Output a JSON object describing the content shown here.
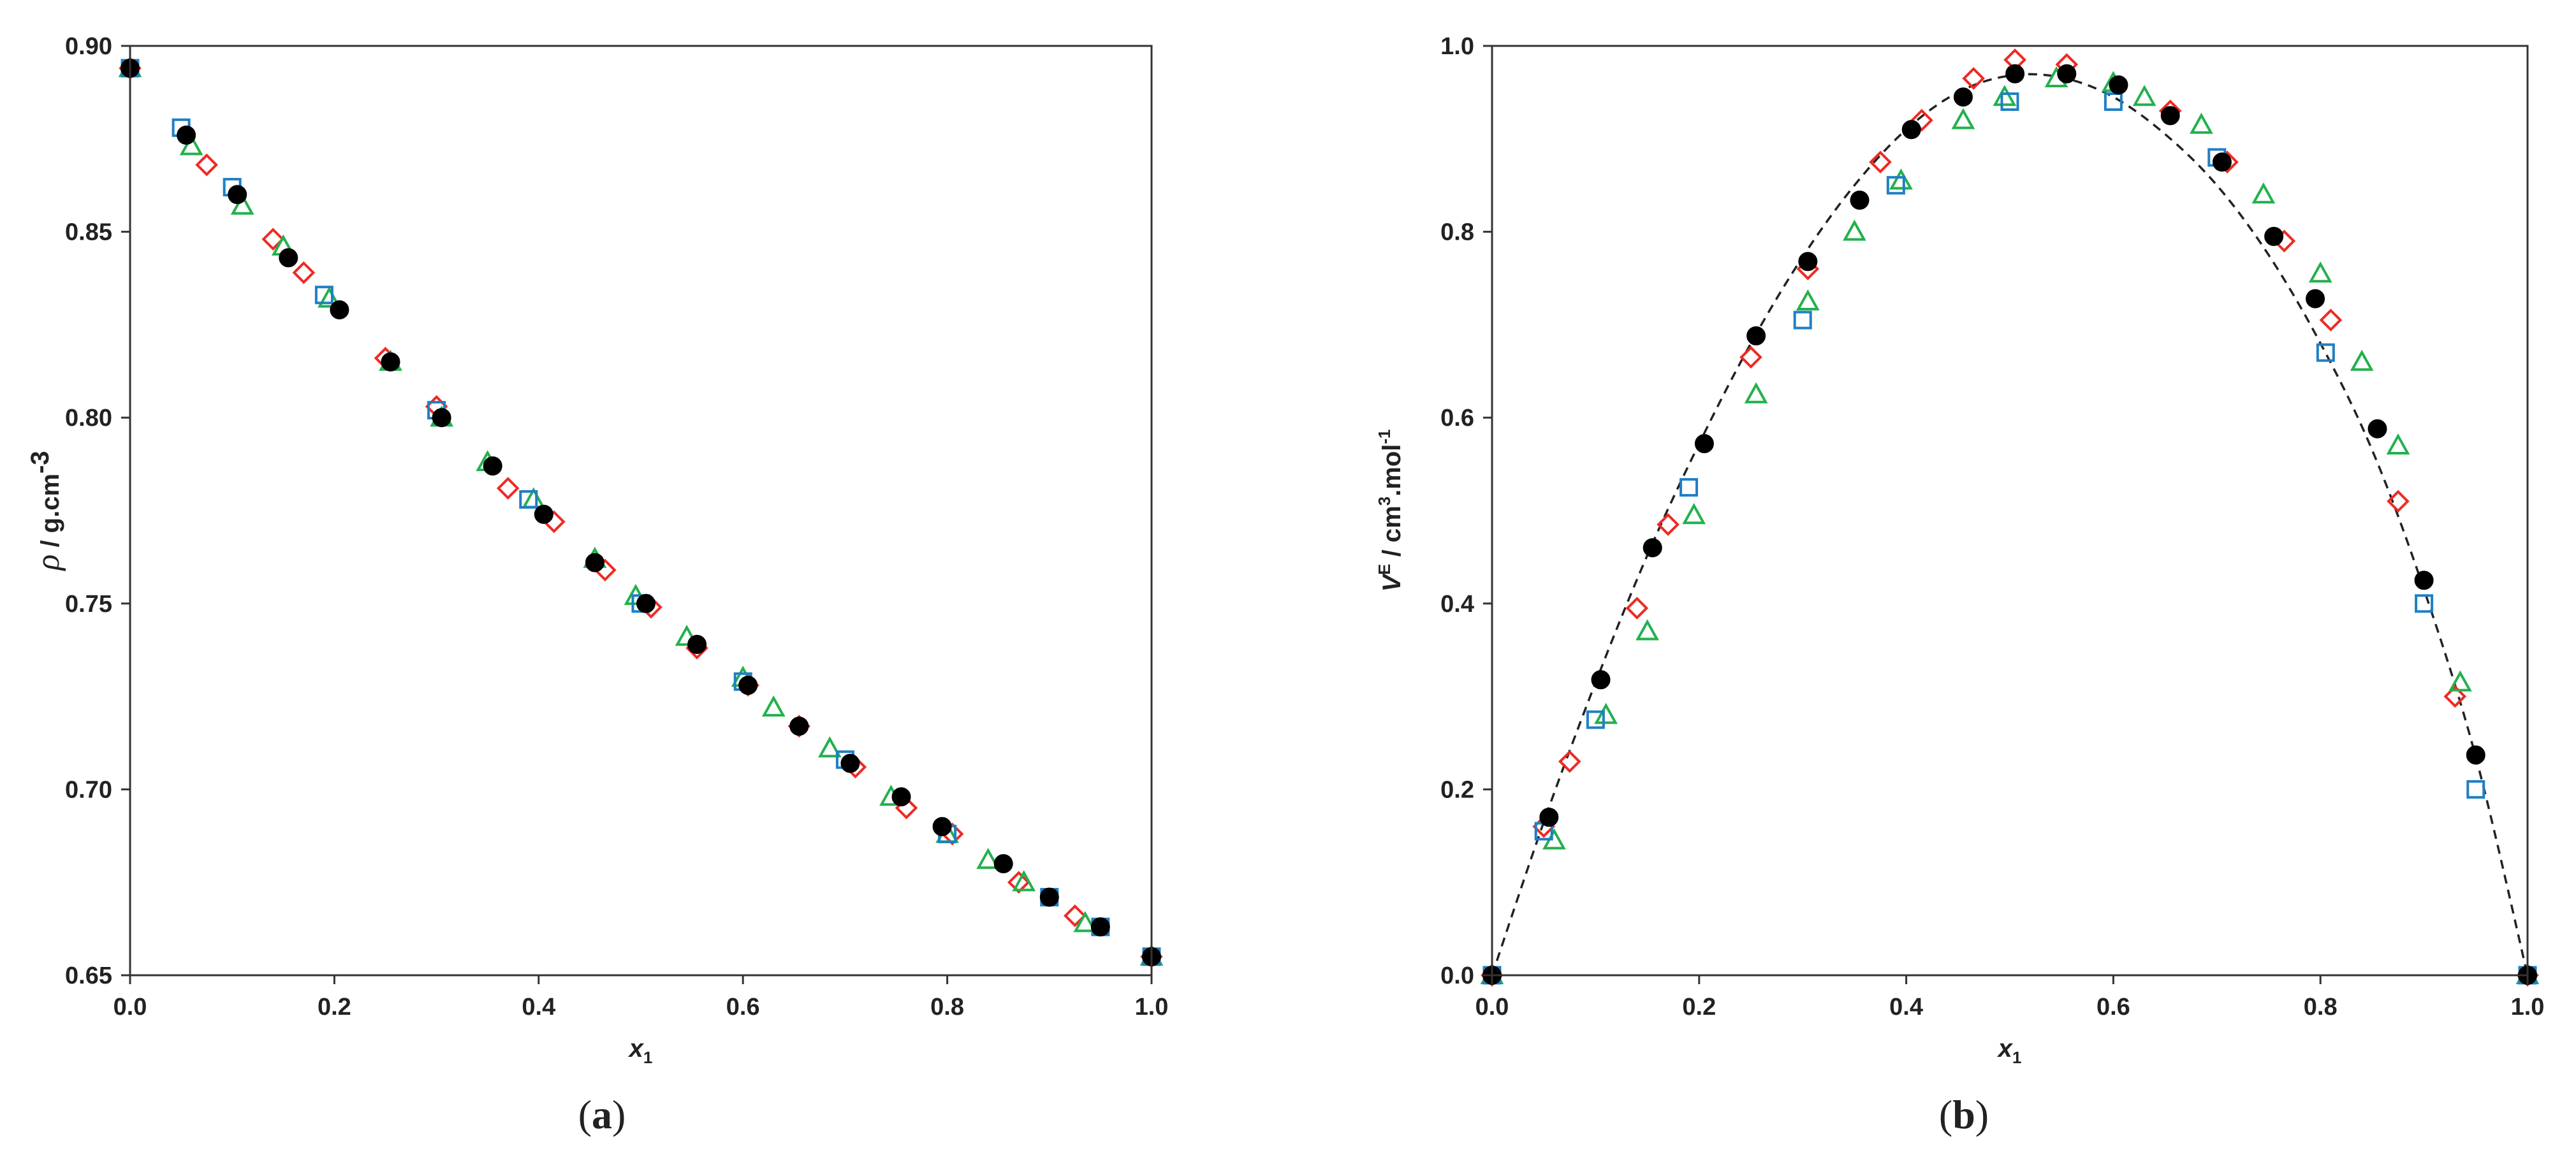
{
  "chart_data": [
    {
      "type": "scatter",
      "panel_label": "(a)",
      "panel_letter": "a",
      "xlabel": "x",
      "xlabel_sub": "1",
      "ylabel_symbol": "ρ",
      "ylabel_unit": " / g.cm",
      "ylabel_sup": "-3",
      "xlim": [
        0.0,
        1.0
      ],
      "ylim": [
        0.65,
        0.9
      ],
      "xticks": [
        "0.0",
        "0.2",
        "0.4",
        "0.6",
        "0.8",
        "1.0"
      ],
      "yticks": [
        "0.65",
        "0.70",
        "0.75",
        "0.80",
        "0.85",
        "0.90"
      ],
      "grid": false,
      "series": [
        {
          "marker": "diamond",
          "color": "#ee2a24",
          "filled": false,
          "x": [
            0.0,
            0.075,
            0.14,
            0.17,
            0.25,
            0.3,
            0.37,
            0.415,
            0.465,
            0.51,
            0.555,
            0.605,
            0.655,
            0.71,
            0.76,
            0.805,
            0.87,
            0.925,
            1.0
          ],
          "y": [
            0.894,
            0.868,
            0.848,
            0.839,
            0.816,
            0.803,
            0.781,
            0.772,
            0.759,
            0.749,
            0.738,
            0.728,
            0.717,
            0.706,
            0.695,
            0.688,
            0.675,
            0.666,
            0.655
          ]
        },
        {
          "marker": "triangle",
          "color": "#22b14c",
          "filled": false,
          "x": [
            0.0,
            0.06,
            0.11,
            0.15,
            0.195,
            0.255,
            0.305,
            0.35,
            0.395,
            0.455,
            0.495,
            0.545,
            0.6,
            0.63,
            0.685,
            0.745,
            0.8,
            0.84,
            0.875,
            0.935,
            1.0
          ],
          "y": [
            0.894,
            0.873,
            0.857,
            0.846,
            0.832,
            0.815,
            0.8,
            0.788,
            0.778,
            0.762,
            0.752,
            0.741,
            0.73,
            0.722,
            0.711,
            0.698,
            0.688,
            0.681,
            0.675,
            0.664,
            0.655
          ]
        },
        {
          "marker": "square",
          "color": "#1f7fc4",
          "filled": false,
          "x": [
            0.0,
            0.05,
            0.1,
            0.19,
            0.3,
            0.39,
            0.5,
            0.6,
            0.7,
            0.8,
            0.9,
            0.95,
            1.0
          ],
          "y": [
            0.894,
            0.878,
            0.862,
            0.833,
            0.802,
            0.778,
            0.75,
            0.729,
            0.708,
            0.688,
            0.671,
            0.663,
            0.655
          ]
        },
        {
          "marker": "circle",
          "color": "#000000",
          "filled": true,
          "x": [
            0.0,
            0.055,
            0.105,
            0.155,
            0.205,
            0.255,
            0.305,
            0.355,
            0.405,
            0.455,
            0.505,
            0.555,
            0.605,
            0.655,
            0.705,
            0.755,
            0.795,
            0.855,
            0.9,
            0.95,
            1.0
          ],
          "y": [
            0.894,
            0.876,
            0.86,
            0.843,
            0.829,
            0.815,
            0.8,
            0.787,
            0.774,
            0.761,
            0.75,
            0.739,
            0.728,
            0.717,
            0.707,
            0.698,
            0.69,
            0.68,
            0.671,
            0.663,
            0.655
          ]
        }
      ]
    },
    {
      "type": "scatter",
      "panel_label": "(b)",
      "panel_letter": "b",
      "xlabel": "x",
      "xlabel_sub": "1",
      "ylabel_symbol": "V",
      "ylabel_sup1": "E",
      "ylabel_unit_a": " / cm",
      "ylabel_sup2": "3",
      "ylabel_unit_b": ".mol",
      "ylabel_sup3": "-1",
      "xlim": [
        0.0,
        1.0
      ],
      "ylim": [
        0.0,
        1.0
      ],
      "xticks": [
        "0.0",
        "0.2",
        "0.4",
        "0.6",
        "0.8",
        "1.0"
      ],
      "yticks": [
        "0.0",
        "0.2",
        "0.4",
        "0.6",
        "0.8",
        "1.0"
      ],
      "grid": false,
      "fit_line": {
        "style": "dashed",
        "color": "#222222",
        "x": [
          0.0,
          0.05,
          0.1,
          0.15,
          0.2,
          0.25,
          0.3,
          0.35,
          0.4,
          0.45,
          0.5,
          0.55,
          0.6,
          0.65,
          0.7,
          0.75,
          0.8,
          0.85,
          0.9,
          0.95,
          1.0
        ],
        "y": [
          0.0,
          0.165,
          0.315,
          0.452,
          0.572,
          0.68,
          0.773,
          0.85,
          0.91,
          0.95,
          0.968,
          0.966,
          0.945,
          0.905,
          0.85,
          0.775,
          0.68,
          0.565,
          0.415,
          0.235,
          0.0
        ]
      },
      "series": [
        {
          "marker": "diamond",
          "color": "#ee2a24",
          "filled": false,
          "x": [
            0.0,
            0.05,
            0.075,
            0.14,
            0.17,
            0.25,
            0.305,
            0.375,
            0.415,
            0.465,
            0.505,
            0.555,
            0.655,
            0.71,
            0.765,
            0.81,
            0.875,
            0.93,
            1.0
          ],
          "y": [
            0.0,
            0.16,
            0.23,
            0.395,
            0.485,
            0.665,
            0.76,
            0.875,
            0.92,
            0.965,
            0.985,
            0.98,
            0.93,
            0.875,
            0.79,
            0.705,
            0.51,
            0.3,
            0.0
          ]
        },
        {
          "marker": "triangle",
          "color": "#22b14c",
          "filled": false,
          "x": [
            0.0,
            0.06,
            0.11,
            0.15,
            0.195,
            0.255,
            0.305,
            0.35,
            0.395,
            0.455,
            0.495,
            0.545,
            0.6,
            0.63,
            0.685,
            0.745,
            0.8,
            0.84,
            0.875,
            0.935,
            1.0
          ],
          "y": [
            0.0,
            0.145,
            0.28,
            0.37,
            0.495,
            0.625,
            0.725,
            0.8,
            0.855,
            0.92,
            0.945,
            0.965,
            0.96,
            0.945,
            0.915,
            0.84,
            0.755,
            0.66,
            0.57,
            0.315,
            0.0
          ]
        },
        {
          "marker": "square",
          "color": "#1f7fc4",
          "filled": false,
          "x": [
            0.0,
            0.05,
            0.1,
            0.19,
            0.3,
            0.39,
            0.5,
            0.6,
            0.7,
            0.805,
            0.9,
            0.95,
            1.0
          ],
          "y": [
            0.0,
            0.155,
            0.275,
            0.525,
            0.705,
            0.85,
            0.94,
            0.94,
            0.88,
            0.67,
            0.4,
            0.2,
            0.0
          ]
        },
        {
          "marker": "circle",
          "color": "#000000",
          "filled": true,
          "x": [
            0.0,
            0.055,
            0.105,
            0.155,
            0.205,
            0.255,
            0.305,
            0.355,
            0.405,
            0.455,
            0.505,
            0.555,
            0.605,
            0.655,
            0.705,
            0.755,
            0.795,
            0.855,
            0.9,
            0.95,
            1.0
          ],
          "y": [
            0.0,
            0.17,
            0.318,
            0.46,
            0.572,
            0.688,
            0.768,
            0.834,
            0.91,
            0.945,
            0.97,
            0.97,
            0.958,
            0.925,
            0.875,
            0.795,
            0.728,
            0.588,
            0.425,
            0.237,
            0.0
          ]
        }
      ]
    }
  ]
}
